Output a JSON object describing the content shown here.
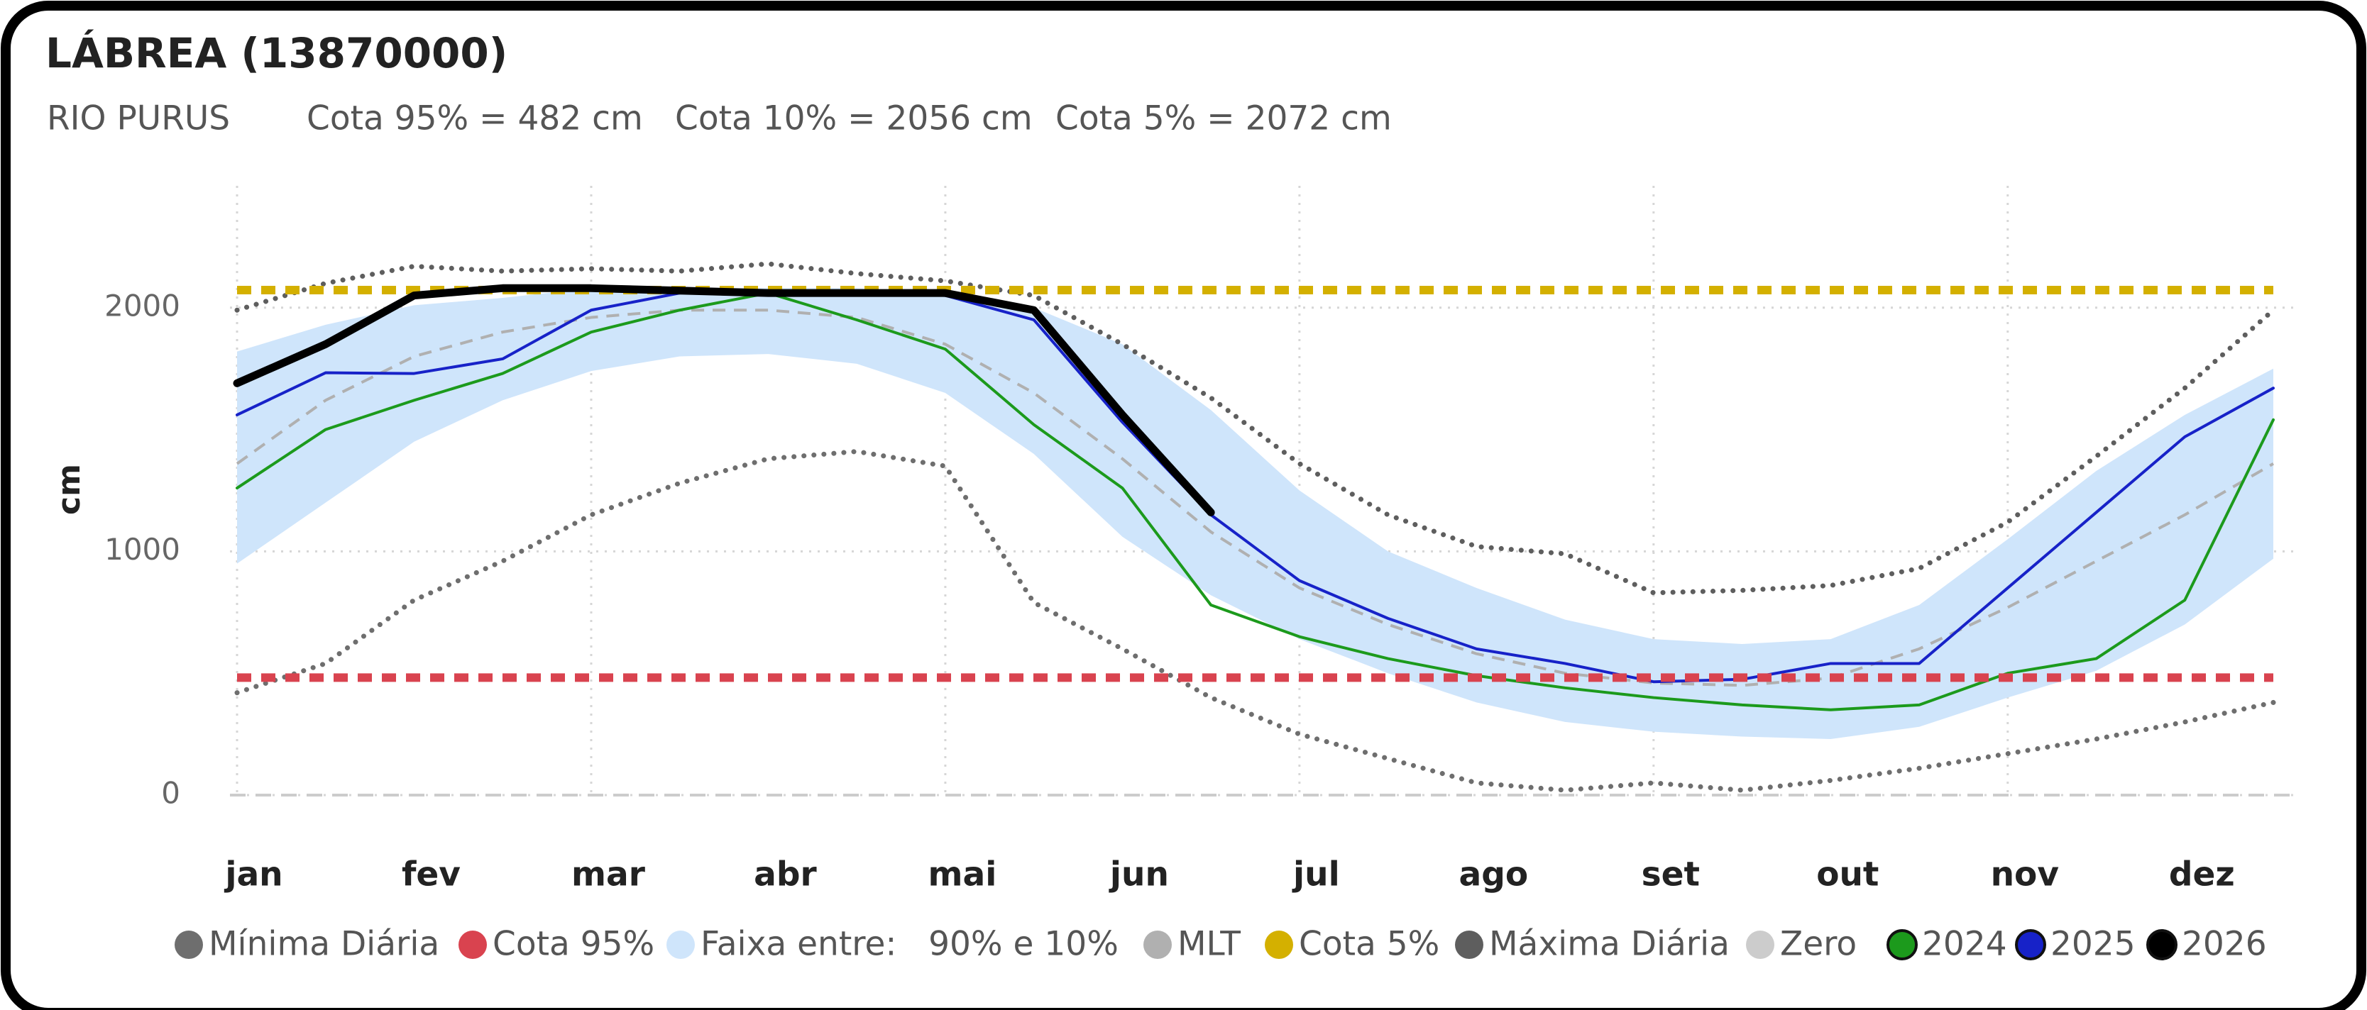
{
  "chart_data": {
    "type": "line",
    "title": "LÁBREA (13870000)",
    "subtitle": [
      "RIO PURUS",
      "Cota 95% = 482 cm",
      "Cota 10% = 2056 cm",
      "Cota 5% = 2072 cm"
    ],
    "y_label": "cm",
    "categories": [
      "jan",
      null,
      "fev",
      null,
      "mar",
      null,
      "abr",
      null,
      "mai",
      null,
      "jun",
      null,
      "jul",
      null,
      "ago",
      null,
      "set",
      null,
      "out",
      null,
      "nov",
      null,
      "dez",
      null
    ],
    "ylim": [
      0,
      2500
    ],
    "yticks": [
      0,
      1000,
      2000
    ],
    "grid": true,
    "band": {
      "name": "Faixa entre:   90% e 10%",
      "color": "#cfe5fb",
      "low": [
        950,
        1200,
        1450,
        1620,
        1740,
        1800,
        1810,
        1770,
        1650,
        1400,
        1060,
        820,
        640,
        500,
        380,
        300,
        260,
        240,
        230,
        280,
        400,
        510,
        700,
        970
      ],
      "high": [
        1820,
        1930,
        2010,
        2040,
        2080,
        2080,
        2080,
        2080,
        2060,
        2000,
        1850,
        1580,
        1250,
        1000,
        850,
        720,
        640,
        620,
        640,
        780,
        1050,
        1330,
        1560,
        1750
      ]
    },
    "series": [
      {
        "name": "Mínima Diária",
        "color": "#6e6e6e",
        "style": "dotted",
        "values": [
          420,
          540,
          800,
          960,
          1150,
          1280,
          1380,
          1410,
          1350,
          790,
          600,
          400,
          250,
          150,
          50,
          20,
          50,
          20,
          60,
          110,
          170,
          230,
          300,
          380
        ]
      },
      {
        "name": "MLT",
        "color": "#b0b0b0",
        "style": "dashed",
        "values": [
          1360,
          1620,
          1800,
          1900,
          1960,
          1990,
          1990,
          1960,
          1850,
          1650,
          1380,
          1080,
          850,
          700,
          580,
          500,
          460,
          450,
          480,
          600,
          770,
          960,
          1150,
          1360
        ]
      },
      {
        "name": "Máxima Diária",
        "color": "#5e5e5e",
        "style": "dotted",
        "values": [
          1990,
          2100,
          2170,
          2150,
          2160,
          2150,
          2180,
          2140,
          2110,
          2050,
          1850,
          1630,
          1360,
          1150,
          1020,
          990,
          830,
          840,
          860,
          930,
          1120,
          1390,
          1670,
          1990
        ]
      },
      {
        "name": "2024",
        "color": "#1c9a1c",
        "style": "solid",
        "values": [
          1260,
          1500,
          1620,
          1730,
          1900,
          1990,
          2060,
          1950,
          1830,
          1520,
          1260,
          780,
          650,
          560,
          490,
          440,
          400,
          370,
          350,
          370,
          500,
          560,
          800,
          1540
        ]
      },
      {
        "name": "2025",
        "color": "#1722c8",
        "style": "solid",
        "values": [
          1560,
          1733,
          1730,
          1790,
          1990,
          2060,
          2070,
          2060,
          2050,
          1950,
          1530,
          1150,
          880,
          725,
          600,
          540,
          465,
          475,
          540,
          540,
          850,
          1160,
          1470,
          1670
        ]
      },
      {
        "name": "2026",
        "color": "#000000",
        "style": "thick",
        "values": [
          1690,
          1850,
          2050,
          2080,
          2080,
          2070,
          2060,
          2060,
          2060,
          1990,
          1560,
          1160,
          null,
          null,
          null,
          null,
          null,
          null,
          null,
          null,
          null,
          null,
          null,
          null
        ]
      }
    ],
    "hlines": [
      {
        "name": "Cota 95%",
        "value": 482,
        "color": "#d9434f",
        "style": "dashed"
      },
      {
        "name": "Cota 5%",
        "value": 2072,
        "color": "#d4b000",
        "style": "dashed"
      },
      {
        "name": "Zero",
        "value": 0,
        "color": "#cccccc",
        "style": "thin"
      }
    ]
  }
}
